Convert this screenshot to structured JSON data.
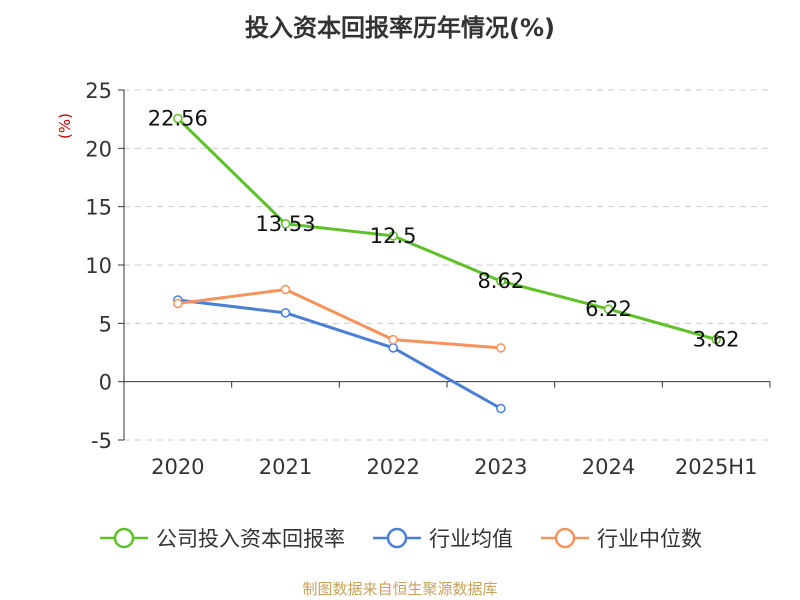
{
  "chart_data": {
    "type": "line",
    "title": "投入资本回报率历年情况(%)",
    "ylabel": "(%)",
    "xlabel": "",
    "categories": [
      "2020",
      "2021",
      "2022",
      "2023",
      "2024",
      "2025H1"
    ],
    "ylim": [
      -5,
      25
    ],
    "yticks": [
      -5,
      0,
      5,
      10,
      15,
      20,
      25
    ],
    "grid": "horizontal dashed",
    "legend_position": "bottom",
    "series": [
      {
        "name": "公司投入资本回报率",
        "color": "#5dc127",
        "values": [
          22.56,
          13.53,
          12.5,
          8.62,
          6.22,
          3.62
        ],
        "labels": [
          "22.56",
          "13.53",
          "12.5",
          "8.62",
          "6.22",
          "3.62"
        ],
        "show_labels": true
      },
      {
        "name": "行业均值",
        "color": "#4a7fd6",
        "values": [
          7.0,
          5.9,
          2.9,
          -2.3,
          null,
          null
        ],
        "show_labels": false
      },
      {
        "name": "行业中位数",
        "color": "#f6935c",
        "values": [
          6.7,
          7.9,
          3.6,
          2.9,
          null,
          null
        ],
        "show_labels": false
      }
    ]
  },
  "footer": {
    "source": "制图数据来自恒生聚源数据库"
  }
}
